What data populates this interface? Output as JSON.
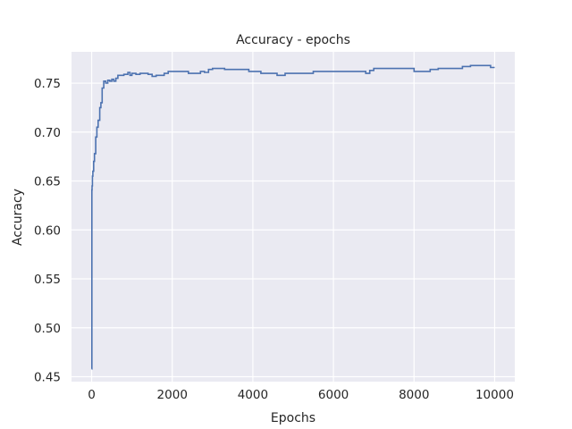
{
  "chart_data": {
    "type": "line",
    "title": "Accuracy - epochs",
    "xlabel": "Epochs",
    "ylabel": "Accuracy",
    "xlim": [
      -500,
      10500
    ],
    "ylim": [
      0.445,
      0.782
    ],
    "xticks": [
      0,
      2000,
      4000,
      6000,
      8000,
      10000
    ],
    "yticks": [
      0.45,
      0.5,
      0.55,
      0.6,
      0.65,
      0.7,
      0.75
    ],
    "ytick_labels": [
      "0.45",
      "0.50",
      "0.55",
      "0.60",
      "0.65",
      "0.70",
      "0.75"
    ],
    "grid": true,
    "colors": {
      "background": "#eaeaf2",
      "grid": "#ffffff",
      "line": "#4c72b0"
    },
    "series": [
      {
        "x": [
          0,
          5,
          10,
          20,
          30,
          50,
          70,
          100,
          130,
          160,
          200,
          230,
          260,
          300,
          350,
          400,
          450,
          500,
          550,
          600,
          650,
          700,
          800,
          900,
          950,
          1000,
          1100,
          1200,
          1300,
          1400,
          1500,
          1600,
          1700,
          1800,
          1900,
          2000,
          2200,
          2400,
          2600,
          2700,
          2800,
          2900,
          3000,
          3300,
          3600,
          3900,
          4200,
          4600,
          4800,
          5000,
          5500,
          6000,
          6500,
          6800,
          6900,
          7000,
          7500,
          7800,
          8000,
          8200,
          8400,
          8600,
          9000,
          9200,
          9400,
          9800,
          9900,
          10000
        ],
        "y": [
          0.458,
          0.641,
          0.645,
          0.655,
          0.66,
          0.67,
          0.678,
          0.695,
          0.705,
          0.712,
          0.725,
          0.73,
          0.745,
          0.752,
          0.75,
          0.753,
          0.752,
          0.754,
          0.752,
          0.755,
          0.758,
          0.758,
          0.759,
          0.761,
          0.758,
          0.76,
          0.759,
          0.76,
          0.76,
          0.759,
          0.757,
          0.758,
          0.758,
          0.76,
          0.762,
          0.762,
          0.762,
          0.76,
          0.76,
          0.762,
          0.761,
          0.764,
          0.765,
          0.764,
          0.764,
          0.762,
          0.76,
          0.758,
          0.76,
          0.76,
          0.762,
          0.762,
          0.762,
          0.76,
          0.763,
          0.765,
          0.765,
          0.765,
          0.762,
          0.762,
          0.764,
          0.765,
          0.765,
          0.767,
          0.768,
          0.768,
          0.766,
          0.766
        ]
      }
    ]
  }
}
